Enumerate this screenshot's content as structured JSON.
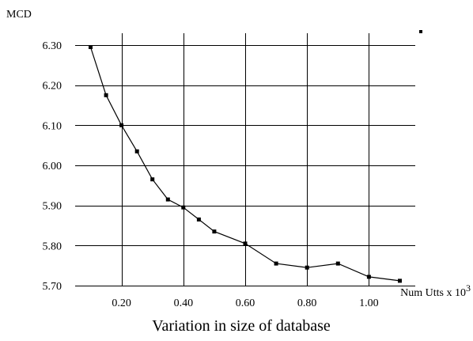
{
  "chart_data": {
    "type": "line",
    "title": "",
    "caption": "Variation in size of database",
    "xlabel": "Num Utts x 10",
    "xlabel_superscript": "3",
    "ylabel": "MCD",
    "xlim": [
      0.05,
      1.15
    ],
    "ylim": [
      5.7,
      6.3
    ],
    "x_ticks": [
      0.2,
      0.4,
      0.6,
      0.8,
      1.0
    ],
    "x_tick_labels": [
      "0.20",
      "0.40",
      "0.60",
      "0.80",
      "1.00"
    ],
    "y_ticks": [
      5.7,
      5.8,
      5.9,
      6.0,
      6.1,
      6.2,
      6.3
    ],
    "y_tick_labels": [
      "5.70",
      "5.80",
      "5.90",
      "6.00",
      "6.10",
      "6.20",
      "6.30"
    ],
    "grid": true,
    "legend": "top-right",
    "series": [
      {
        "x": [
          0.1,
          0.15,
          0.2,
          0.25,
          0.3,
          0.35,
          0.4,
          0.45,
          0.5,
          0.6,
          0.7,
          0.8,
          0.9,
          1.0,
          1.1
        ],
        "values": [
          6.295,
          6.175,
          6.1,
          6.035,
          5.965,
          5.915,
          5.895,
          5.865,
          5.835,
          5.805,
          5.755,
          5.745,
          5.755,
          5.722,
          5.712
        ]
      }
    ]
  }
}
